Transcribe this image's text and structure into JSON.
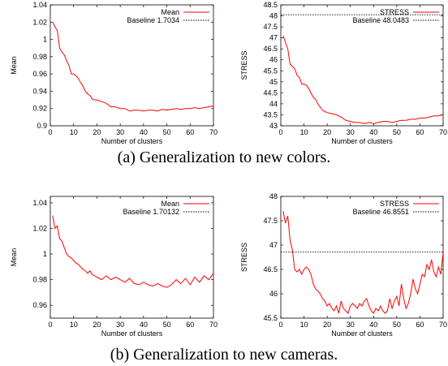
{
  "captions": {
    "a": "(a) Generalization to new colors.",
    "b": "(b) Generalization to new cameras."
  },
  "chart_data": [
    {
      "type": "line",
      "xlabel": "Number of clusters",
      "ylabel": "Mean",
      "xlim": [
        0,
        70
      ],
      "ylim": [
        0.9,
        1.04
      ],
      "xticks": [
        0,
        10,
        20,
        30,
        40,
        50,
        60,
        70
      ],
      "yticks": [
        0.9,
        0.92,
        0.94,
        0.96,
        0.98,
        1,
        1.02,
        1.04
      ],
      "legend_position": "top-right",
      "series": [
        {
          "name": "Mean",
          "color": "#ff0000",
          "style": "solid",
          "x": [
            1,
            2,
            3,
            4,
            5,
            6,
            7,
            8,
            9,
            10,
            11,
            12,
            13,
            14,
            15,
            16,
            17,
            18,
            19,
            20,
            22,
            24,
            26,
            28,
            30,
            32,
            34,
            36,
            38,
            40,
            42,
            44,
            46,
            48,
            50,
            52,
            54,
            56,
            58,
            60,
            62,
            64,
            66,
            68,
            70
          ],
          "y": [
            1.02,
            1.015,
            1.01,
            0.99,
            0.985,
            0.982,
            0.975,
            0.97,
            0.96,
            0.96,
            0.958,
            0.955,
            0.95,
            0.946,
            0.94,
            0.937,
            0.935,
            0.931,
            0.93,
            0.93,
            0.928,
            0.926,
            0.922,
            0.922,
            0.92,
            0.92,
            0.917,
            0.918,
            0.918,
            0.917,
            0.918,
            0.918,
            0.917,
            0.919,
            0.918,
            0.919,
            0.92,
            0.919,
            0.92,
            0.92,
            0.921,
            0.92,
            0.921,
            0.922,
            0.923
          ]
        },
        {
          "name": "Baseline 1.7034",
          "color": "#000000",
          "style": "dotted",
          "constant": 1.7034
        }
      ]
    },
    {
      "type": "line",
      "xlabel": "Number of clusters",
      "ylabel": "STRESS",
      "xlim": [
        0,
        70
      ],
      "ylim": [
        43,
        48.5
      ],
      "xticks": [
        0,
        10,
        20,
        30,
        40,
        50,
        60,
        70
      ],
      "yticks": [
        43,
        43.5,
        44,
        44.5,
        45,
        45.5,
        46,
        46.5,
        47,
        47.5,
        48,
        48.5
      ],
      "legend_position": "top-right",
      "series": [
        {
          "name": "STRESS",
          "color": "#ff0000",
          "style": "solid",
          "x": [
            1,
            2,
            3,
            4,
            5,
            6,
            7,
            8,
            9,
            10,
            11,
            12,
            13,
            14,
            15,
            16,
            17,
            18,
            19,
            20,
            22,
            24,
            26,
            28,
            30,
            32,
            34,
            36,
            38,
            40,
            42,
            44,
            46,
            48,
            50,
            52,
            54,
            56,
            58,
            60,
            62,
            64,
            66,
            68,
            70
          ],
          "y": [
            47.1,
            46.8,
            46.5,
            45.8,
            45.7,
            45.6,
            45.3,
            45.2,
            44.9,
            44.9,
            44.85,
            44.7,
            44.5,
            44.3,
            44.2,
            44.0,
            43.85,
            43.7,
            43.65,
            43.6,
            43.55,
            43.5,
            43.4,
            43.25,
            43.2,
            43.15,
            43.15,
            43.1,
            43.15,
            43.1,
            43.15,
            43.2,
            43.2,
            43.15,
            43.2,
            43.25,
            43.25,
            43.3,
            43.3,
            43.35,
            43.35,
            43.4,
            43.45,
            43.45,
            43.5
          ]
        },
        {
          "name": "Baseline 48.0483",
          "color": "#000000",
          "style": "dotted",
          "constant": 48.0483
        }
      ]
    },
    {
      "type": "line",
      "xlabel": "Number of clusters",
      "ylabel": "Mean",
      "xlim": [
        0,
        70
      ],
      "ylim": [
        0.95,
        1.045
      ],
      "xticks": [
        0,
        10,
        20,
        30,
        40,
        50,
        60,
        70
      ],
      "yticks": [
        0.96,
        0.98,
        1,
        1.02,
        1.04
      ],
      "legend_position": "top-right",
      "series": [
        {
          "name": "Mean",
          "color": "#ff0000",
          "style": "solid",
          "x": [
            1,
            2,
            3,
            4,
            5,
            6,
            7,
            8,
            9,
            10,
            11,
            12,
            13,
            14,
            15,
            16,
            17,
            18,
            19,
            20,
            22,
            24,
            26,
            28,
            30,
            32,
            34,
            36,
            38,
            40,
            42,
            44,
            46,
            48,
            50,
            52,
            54,
            56,
            58,
            60,
            62,
            64,
            66,
            68,
            70
          ],
          "y": [
            1.03,
            1.02,
            1.022,
            1.012,
            1.01,
            1.005,
            1.0,
            0.998,
            0.997,
            0.995,
            0.993,
            0.992,
            0.99,
            0.988,
            0.987,
            0.985,
            0.987,
            0.984,
            0.983,
            0.982,
            0.98,
            0.983,
            0.98,
            0.982,
            0.98,
            0.978,
            0.981,
            0.977,
            0.976,
            0.978,
            0.976,
            0.975,
            0.977,
            0.975,
            0.974,
            0.976,
            0.98,
            0.977,
            0.981,
            0.976,
            0.982,
            0.978,
            0.983,
            0.98,
            0.985
          ]
        },
        {
          "name": "Baseline 1.70132",
          "color": "#000000",
          "style": "dotted",
          "constant": 1.70132
        }
      ]
    },
    {
      "type": "line",
      "xlabel": "Number of clusters",
      "ylabel": "STRESS",
      "xlim": [
        0,
        70
      ],
      "ylim": [
        45.5,
        48
      ],
      "xticks": [
        0,
        10,
        20,
        30,
        40,
        50,
        60,
        70
      ],
      "yticks": [
        45.5,
        46,
        46.5,
        47,
        47.5,
        48
      ],
      "legend_position": "top-right",
      "series": [
        {
          "name": "STRESS",
          "color": "#ff0000",
          "style": "solid",
          "x": [
            1,
            2,
            3,
            4,
            5,
            6,
            7,
            8,
            9,
            10,
            11,
            12,
            13,
            14,
            15,
            16,
            17,
            18,
            19,
            20,
            21,
            22,
            23,
            24,
            25,
            26,
            27,
            28,
            29,
            30,
            31,
            32,
            33,
            34,
            35,
            36,
            37,
            38,
            39,
            40,
            41,
            42,
            43,
            44,
            45,
            46,
            47,
            48,
            49,
            50,
            51,
            52,
            53,
            54,
            55,
            56,
            57,
            58,
            59,
            60,
            61,
            62,
            63,
            64,
            65,
            66,
            67,
            68,
            69,
            70
          ],
          "y": [
            47.7,
            47.45,
            47.6,
            47.1,
            46.9,
            46.5,
            46.45,
            46.5,
            46.4,
            46.5,
            46.55,
            46.5,
            46.4,
            46.2,
            46.1,
            46.05,
            46.0,
            45.9,
            45.85,
            45.75,
            45.8,
            45.7,
            45.65,
            45.75,
            45.6,
            45.85,
            45.7,
            45.65,
            45.6,
            45.75,
            45.8,
            45.75,
            45.7,
            45.8,
            45.75,
            45.85,
            45.9,
            45.75,
            45.65,
            45.6,
            45.7,
            45.65,
            45.75,
            45.65,
            45.6,
            45.65,
            45.9,
            45.7,
            45.85,
            45.95,
            45.75,
            46.2,
            45.9,
            45.7,
            45.8,
            46.0,
            46.3,
            46.1,
            46.0,
            46.2,
            46.4,
            46.35,
            46.6,
            46.5,
            46.7,
            46.45,
            46.35,
            46.55,
            46.4,
            46.85
          ]
        },
        {
          "name": "Baseline 46.8551",
          "color": "#000000",
          "style": "dotted",
          "constant": 46.8551
        }
      ]
    }
  ]
}
